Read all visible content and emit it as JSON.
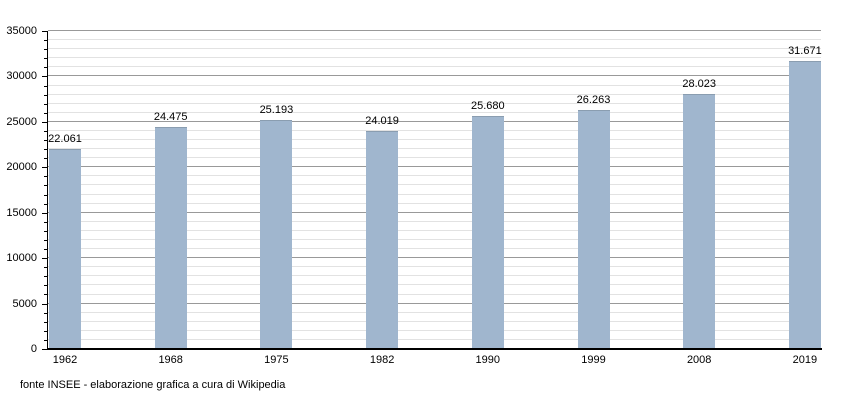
{
  "chart_data": {
    "type": "bar",
    "title": "",
    "xlabel": "",
    "ylabel": "",
    "categories": [
      "1962",
      "1968",
      "1975",
      "1982",
      "1990",
      "1999",
      "2008",
      "2019"
    ],
    "values": [
      22061,
      24475,
      25193,
      24019,
      25680,
      26263,
      28023,
      31671
    ],
    "value_labels": [
      "22.061",
      "24.475",
      "25.193",
      "24.019",
      "25.680",
      "26.263",
      "28.023",
      "31.671"
    ],
    "ylim": [
      0,
      35000
    ],
    "y_major_step": 5000,
    "y_minor_step": 1000,
    "y_tick_labels": [
      "0",
      "5000",
      "10000",
      "15000",
      "20000",
      "25000",
      "30000",
      "35000"
    ],
    "grid": true,
    "legend": false,
    "bar_color": "#a0b6ce",
    "major_grid_color": "#999999",
    "minor_grid_color": "#e2e2e2"
  },
  "footer": {
    "source_note": "fonte INSEE - elaborazione grafica a cura di Wikipedia"
  }
}
